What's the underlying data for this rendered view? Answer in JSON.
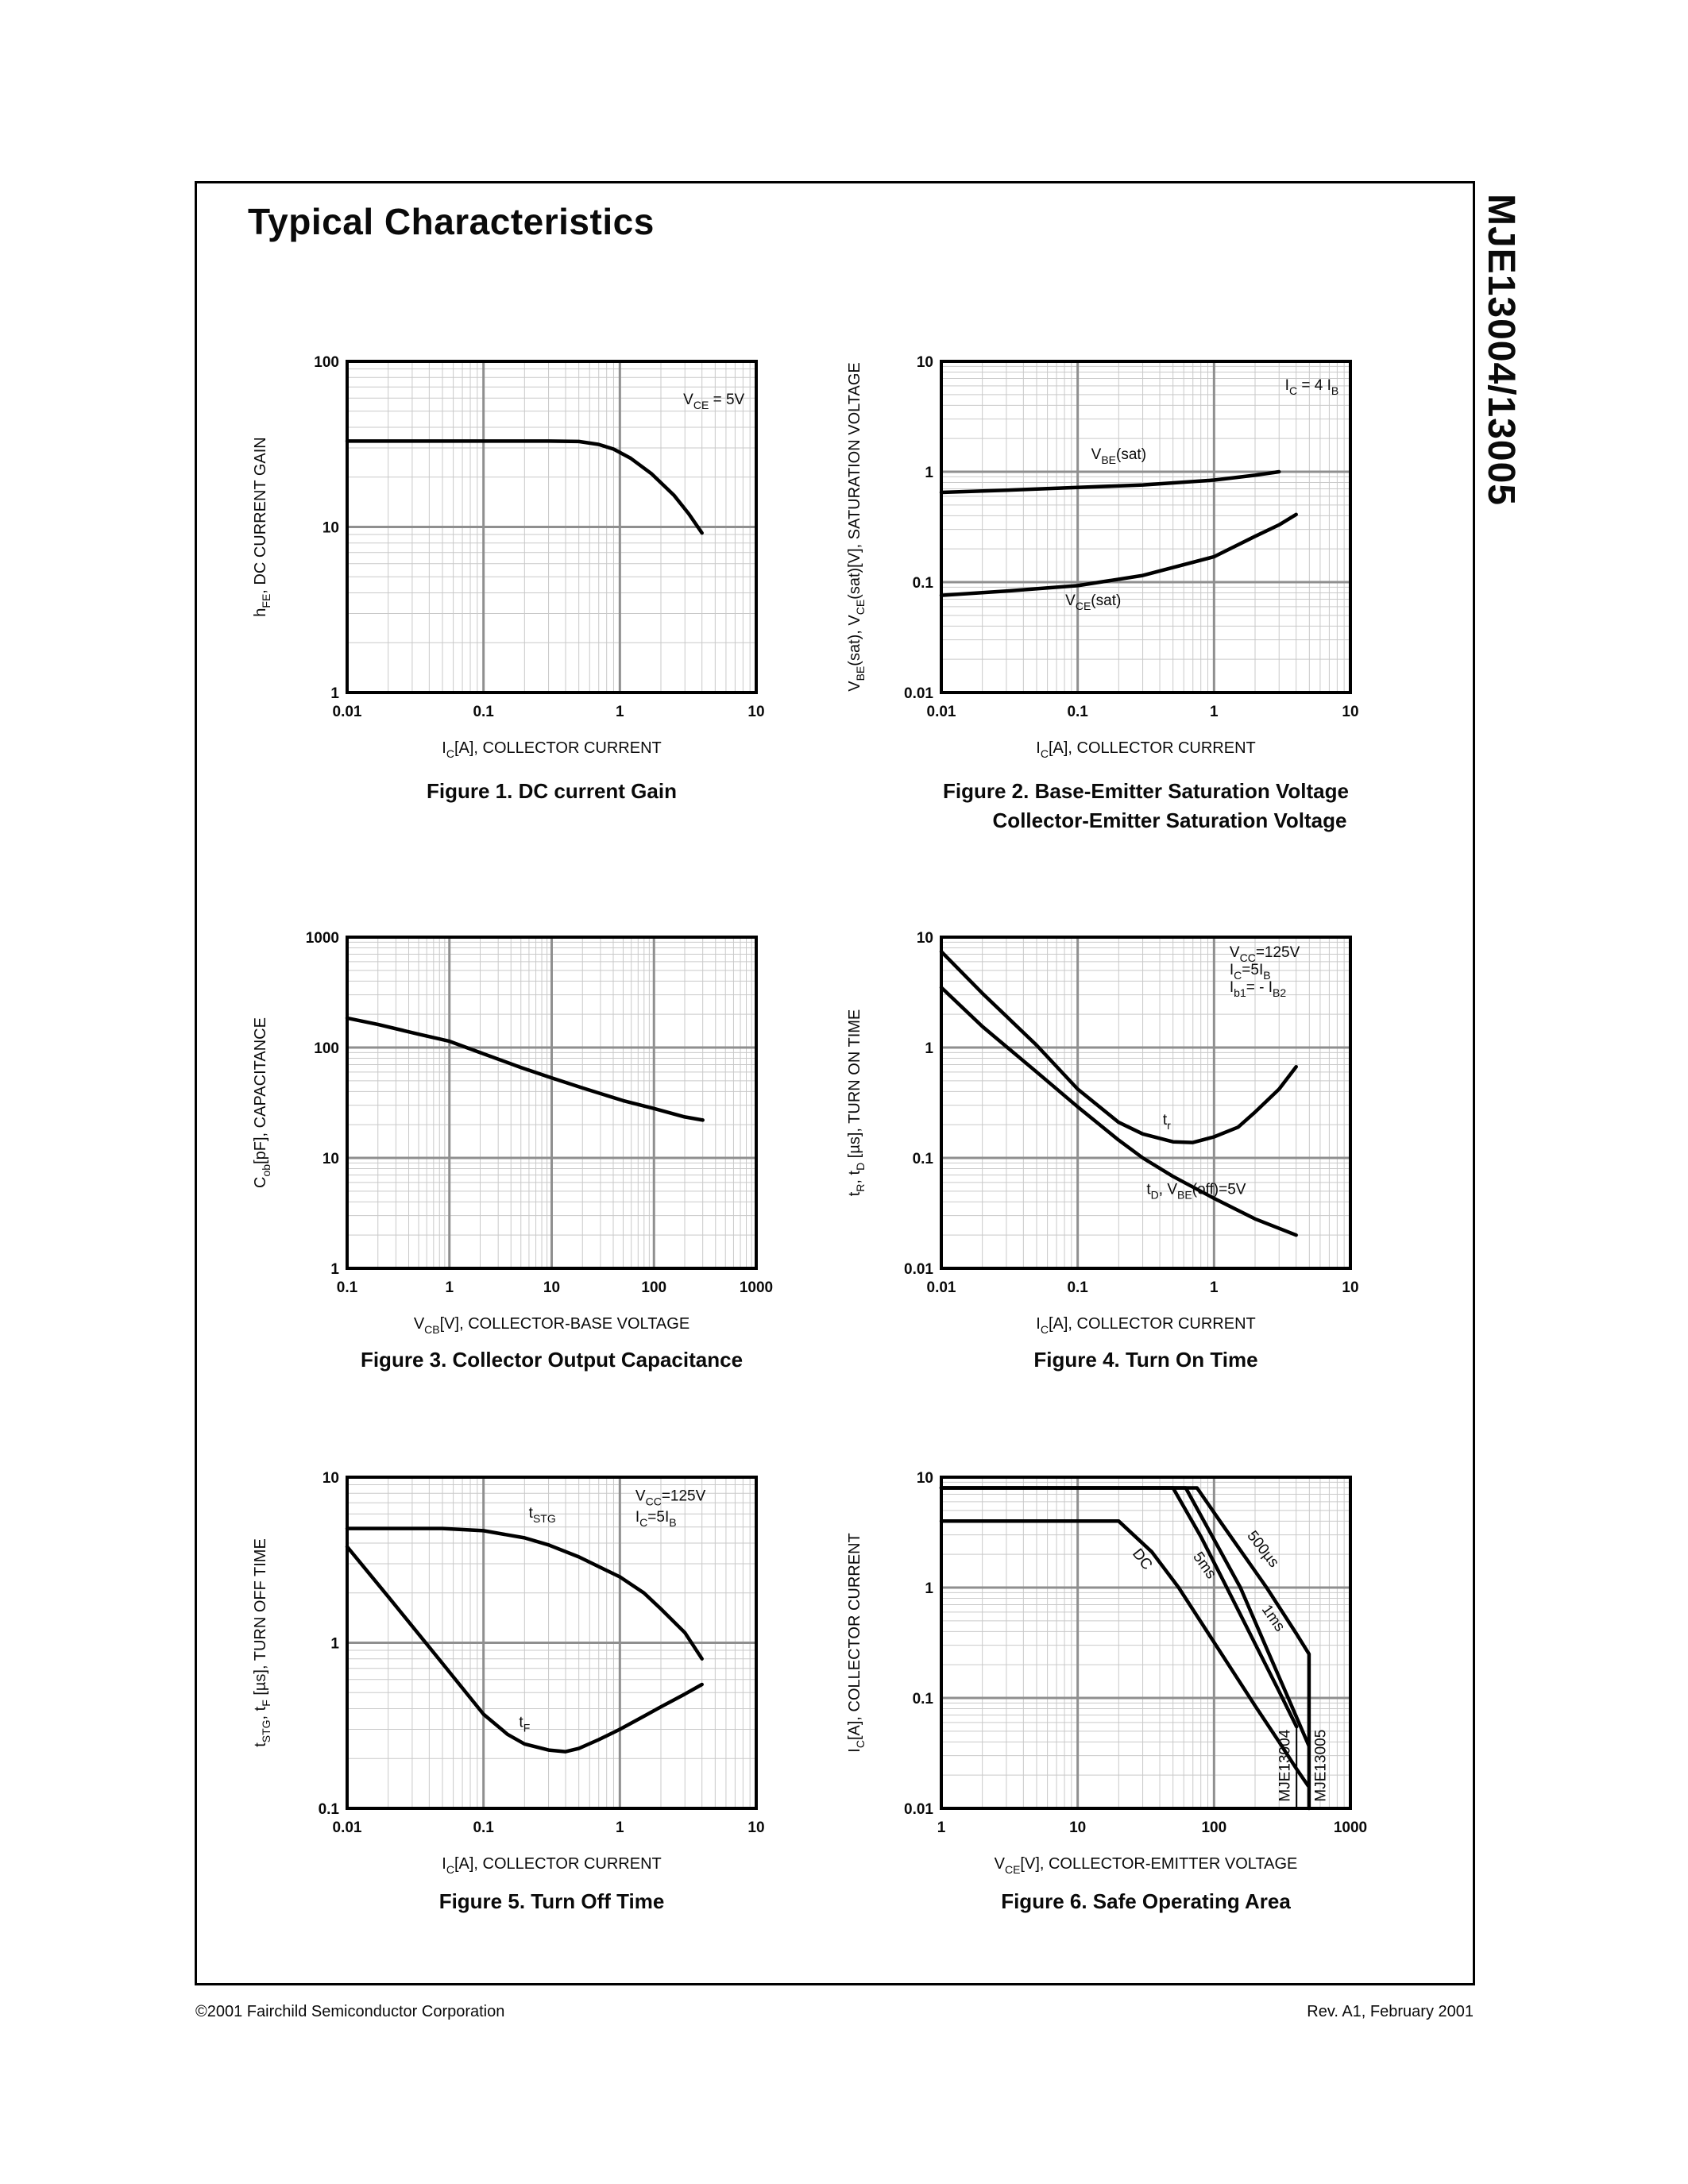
{
  "page": {
    "title": "Typical Characteristics",
    "side_title": "MJE13004/13005",
    "footer": {
      "left": "©2001 Fairchild Semiconductor Corporation",
      "right": "Rev. A1, February 2001"
    }
  },
  "chart_data": [
    {
      "name": "figure-1-dc-current-gain",
      "type": "line",
      "caption": [
        "Figure 1. DC current Gain"
      ],
      "xlabel": "I~C~[A], COLLECTOR CURRENT",
      "ylabel": "h~FE~, DC CURRENT GAIN",
      "xrange": [
        0.01,
        10
      ],
      "yrange": [
        1,
        100
      ],
      "xticks": [
        "0.01",
        "0.1",
        "1",
        "10"
      ],
      "yticks": [
        "1",
        "10",
        "100"
      ],
      "grid": true,
      "annotations": [
        {
          "text": "V~CE~ = 5V",
          "x": 8.2,
          "y": 55,
          "anchor": "end"
        }
      ],
      "labels": [],
      "series": [
        {
          "name": "hFE",
          "points": [
            [
              0.01,
              33
            ],
            [
              0.1,
              33
            ],
            [
              0.3,
              33
            ],
            [
              0.5,
              32.8
            ],
            [
              0.7,
              31.5
            ],
            [
              0.9,
              29.5
            ],
            [
              1.2,
              26
            ],
            [
              1.7,
              21
            ],
            [
              2.5,
              15.5
            ],
            [
              3.2,
              12
            ],
            [
              4,
              9.2
            ]
          ]
        }
      ]
    },
    {
      "name": "figure-2-saturation-voltage",
      "type": "line",
      "caption": [
        "Figure 2. Base-Emitter Saturation Voltage",
        "Collector-Emitter Saturation Voltage"
      ],
      "xlabel": "I~C~[A], COLLECTOR CURRENT",
      "ylabel": "V~BE~(sat), V~CE~(sat)[V], SATURATION VOLTAGE",
      "xrange": [
        0.01,
        10
      ],
      "yrange": [
        0.01,
        10
      ],
      "xticks": [
        "0.01",
        "0.1",
        "1",
        "10"
      ],
      "yticks": [
        "0.01",
        "0.1",
        "1",
        "10"
      ],
      "grid": true,
      "annotations": [
        {
          "text": "I~C~ = 4 I~B~",
          "x": 8.2,
          "y": 5.5,
          "anchor": "end"
        }
      ],
      "labels": [
        {
          "text": "V~BE~(sat)",
          "x": 0.2,
          "y": 1.3
        },
        {
          "text": "V~CE~(sat)",
          "x": 0.13,
          "y": 0.062
        }
      ],
      "series": [
        {
          "name": "VBE(sat)",
          "points": [
            [
              0.01,
              0.65
            ],
            [
              0.03,
              0.68
            ],
            [
              0.1,
              0.72
            ],
            [
              0.3,
              0.76
            ],
            [
              1,
              0.84
            ],
            [
              2,
              0.93
            ],
            [
              3,
              1.0
            ]
          ]
        },
        {
          "name": "VCE(sat)",
          "points": [
            [
              0.01,
              0.076
            ],
            [
              0.03,
              0.083
            ],
            [
              0.1,
              0.093
            ],
            [
              0.3,
              0.115
            ],
            [
              1,
              0.17
            ],
            [
              2,
              0.26
            ],
            [
              3,
              0.33
            ],
            [
              4,
              0.41
            ]
          ]
        }
      ]
    },
    {
      "name": "figure-3-collector-output-capacitance",
      "type": "line",
      "caption": [
        "Figure 3. Collector Output Capacitance"
      ],
      "xlabel": "V~CB~[V], COLLECTOR-BASE VOLTAGE",
      "ylabel": "C~ob~[pF], CAPACITANCE",
      "xrange": [
        0.1,
        1000
      ],
      "yrange": [
        1,
        1000
      ],
      "xticks": [
        "0.1",
        "1",
        "10",
        "100",
        "1000"
      ],
      "yticks": [
        "1",
        "10",
        "100",
        "1000"
      ],
      "grid": true,
      "annotations": [],
      "labels": [],
      "series": [
        {
          "name": "Cob",
          "points": [
            [
              0.1,
              185
            ],
            [
              0.2,
              162
            ],
            [
              0.5,
              132
            ],
            [
              1,
              114
            ],
            [
              2,
              90
            ],
            [
              5,
              66
            ],
            [
              10,
              53
            ],
            [
              20,
              43
            ],
            [
              50,
              33
            ],
            [
              100,
              28
            ],
            [
              200,
              23.5
            ],
            [
              300,
              22
            ]
          ]
        }
      ]
    },
    {
      "name": "figure-4-turn-on-time",
      "type": "line",
      "caption": [
        "Figure 4. Turn On Time"
      ],
      "xlabel": "I~C~[A], COLLECTOR CURRENT",
      "ylabel": "t~R~, t~D~ [µs], TURN ON TIME",
      "xrange": [
        0.01,
        10
      ],
      "yrange": [
        0.01,
        10
      ],
      "xticks": [
        "0.01",
        "0.1",
        "1",
        "10"
      ],
      "yticks": [
        "0.01",
        "0.1",
        "1",
        "10"
      ],
      "grid": true,
      "annotations": [
        {
          "text": "V~CC~=125V",
          "x": 1.3,
          "y": 6.6,
          "anchor": "start"
        },
        {
          "text": "I~C~=5I~B~",
          "x": 1.3,
          "y": 4.6,
          "anchor": "start"
        },
        {
          "text": "I~b1~= - I~B2~",
          "x": 1.3,
          "y": 3.2,
          "anchor": "start"
        }
      ],
      "labels": [
        {
          "text": "t~r~",
          "x": 0.45,
          "y": 0.2
        },
        {
          "text": "t~D~, V~BE~(off)=5V",
          "x": 0.32,
          "y": 0.047,
          "anchor": "start"
        }
      ],
      "series": [
        {
          "name": "tr",
          "points": [
            [
              0.01,
              7.4
            ],
            [
              0.02,
              3.1
            ],
            [
              0.05,
              1.05
            ],
            [
              0.1,
              0.42
            ],
            [
              0.2,
              0.21
            ],
            [
              0.3,
              0.165
            ],
            [
              0.5,
              0.14
            ],
            [
              0.7,
              0.138
            ],
            [
              1,
              0.155
            ],
            [
              1.5,
              0.19
            ],
            [
              2,
              0.26
            ],
            [
              3,
              0.42
            ],
            [
              4,
              0.67
            ]
          ]
        },
        {
          "name": "td",
          "points": [
            [
              0.01,
              3.5
            ],
            [
              0.02,
              1.55
            ],
            [
              0.05,
              0.6
            ],
            [
              0.1,
              0.29
            ],
            [
              0.2,
              0.145
            ],
            [
              0.3,
              0.1
            ],
            [
              0.5,
              0.068
            ],
            [
              1,
              0.043
            ],
            [
              2,
              0.028
            ],
            [
              3,
              0.023
            ],
            [
              4,
              0.02
            ]
          ]
        }
      ]
    },
    {
      "name": "figure-5-turn-off-time",
      "type": "line",
      "caption": [
        "Figure 5. Turn Off Time"
      ],
      "xlabel": "I~C~[A], COLLECTOR CURRENT",
      "ylabel": "t~STG~, t~F~ [µs], TURN OFF TIME",
      "xrange": [
        0.01,
        10
      ],
      "yrange": [
        0.1,
        10
      ],
      "xticks": [
        "0.01",
        "0.1",
        "1",
        "10"
      ],
      "yticks": [
        "0.1",
        "1",
        "10"
      ],
      "grid": true,
      "annotations": [
        {
          "text": "V~CC~=125V",
          "x": 1.3,
          "y": 7.2,
          "anchor": "start"
        },
        {
          "text": "I~C~=5I~B~",
          "x": 1.3,
          "y": 5.4,
          "anchor": "start"
        }
      ],
      "labels": [
        {
          "text": "t~STG~",
          "x": 0.27,
          "y": 5.7
        },
        {
          "text": "t~F~",
          "x": 0.2,
          "y": 0.31
        }
      ],
      "series": [
        {
          "name": "tSTG",
          "points": [
            [
              0.01,
              4.9
            ],
            [
              0.05,
              4.9
            ],
            [
              0.1,
              4.75
            ],
            [
              0.2,
              4.3
            ],
            [
              0.3,
              3.9
            ],
            [
              0.5,
              3.3
            ],
            [
              1,
              2.5
            ],
            [
              1.5,
              2.0
            ],
            [
              2,
              1.6
            ],
            [
              3,
              1.15
            ],
            [
              4,
              0.8
            ]
          ]
        },
        {
          "name": "tF",
          "points": [
            [
              0.01,
              3.8
            ],
            [
              0.02,
              1.9
            ],
            [
              0.05,
              0.75
            ],
            [
              0.1,
              0.37
            ],
            [
              0.15,
              0.28
            ],
            [
              0.2,
              0.245
            ],
            [
              0.3,
              0.225
            ],
            [
              0.4,
              0.22
            ],
            [
              0.5,
              0.23
            ],
            [
              0.7,
              0.26
            ],
            [
              1,
              0.3
            ],
            [
              1.5,
              0.36
            ],
            [
              2,
              0.41
            ],
            [
              3,
              0.49
            ],
            [
              4,
              0.56
            ]
          ]
        }
      ]
    },
    {
      "name": "figure-6-safe-operating-area",
      "type": "line",
      "caption": [
        "Figure 6. Safe Operating Area"
      ],
      "xlabel": "V~CE~[V], COLLECTOR-EMITTER VOLTAGE",
      "ylabel": "I~C~[A], COLLECTOR CURRENT",
      "xrange": [
        1,
        1000
      ],
      "yrange": [
        0.01,
        10
      ],
      "xticks": [
        "1",
        "10",
        "100",
        "1000"
      ],
      "yticks": [
        "0.01",
        "0.1",
        "1",
        "10"
      ],
      "grid": true,
      "annotations": [],
      "labels": [
        {
          "text": "DC",
          "x": 28,
          "y": 1.7,
          "rotate": 52
        },
        {
          "text": "5ms",
          "x": 80,
          "y": 1.5,
          "rotate": 55
        },
        {
          "text": "500µs",
          "x": 215,
          "y": 2.1,
          "rotate": 52
        },
        {
          "text": "1ms",
          "x": 255,
          "y": 0.5,
          "rotate": 55
        },
        {
          "text": "MJE13004",
          "x": 358,
          "y": 0.0115,
          "rotate": -90,
          "anchor": "start"
        },
        {
          "text": "MJE13005",
          "x": 655,
          "y": 0.0115,
          "rotate": -90,
          "anchor": "start"
        }
      ],
      "series": [
        {
          "name": "DC",
          "points": [
            [
              1,
              4
            ],
            [
              20,
              4
            ],
            [
              35,
              2.1
            ],
            [
              55,
              1
            ],
            [
              100,
              0.32
            ],
            [
              200,
              0.085
            ],
            [
              300,
              0.04
            ],
            [
              400,
              0.023
            ],
            [
              490,
              0.016
            ]
          ]
        },
        {
          "name": "5ms",
          "points": [
            [
              1,
              8
            ],
            [
              50,
              8
            ],
            [
              80,
              2.9
            ],
            [
              124,
              1
            ],
            [
              200,
              0.31
            ],
            [
              300,
              0.115
            ],
            [
              403,
              0.055
            ]
          ]
        },
        {
          "name": "MJE13004-limit",
          "width": 2,
          "points": [
            [
              403,
              0.055
            ],
            [
              403,
              0.01
            ]
          ]
        },
        {
          "name": "1ms",
          "points": [
            [
              1,
              8
            ],
            [
              62,
              8
            ],
            [
              156,
              1
            ],
            [
              250,
              0.26
            ],
            [
              350,
              0.1
            ],
            [
              495,
              0.037
            ]
          ]
        },
        {
          "name": "500us",
          "points": [
            [
              1,
              8
            ],
            [
              75,
              8
            ],
            [
              112,
              3.9
            ],
            [
              243,
              1
            ],
            [
              400,
              0.385
            ],
            [
              497,
              0.25
            ],
            [
              497,
              0.01
            ]
          ]
        }
      ]
    }
  ]
}
